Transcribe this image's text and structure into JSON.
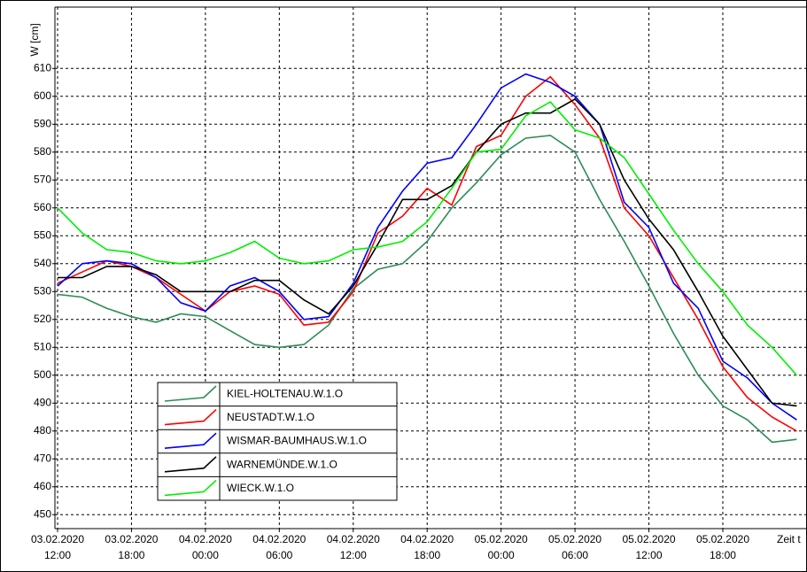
{
  "chart_data": {
    "type": "line",
    "y_label": "W [cm]",
    "x_label": "Zeit t",
    "x": [
      "03.02.2020 12:00",
      "03.02.2020 14:00",
      "03.02.2020 16:00",
      "03.02.2020 18:00",
      "03.02.2020 20:00",
      "03.02.2020 22:00",
      "04.02.2020 00:00",
      "04.02.2020 02:00",
      "04.02.2020 04:00",
      "04.02.2020 06:00",
      "04.02.2020 08:00",
      "04.02.2020 10:00",
      "04.02.2020 12:00",
      "04.02.2020 14:00",
      "04.02.2020 16:00",
      "04.02.2020 18:00",
      "04.02.2020 20:00",
      "04.02.2020 22:00",
      "05.02.2020 00:00",
      "05.02.2020 02:00",
      "05.02.2020 04:00",
      "05.02.2020 06:00",
      "05.02.2020 08:00",
      "05.02.2020 10:00",
      "05.02.2020 12:00",
      "05.02.2020 14:00",
      "05.02.2020 16:00",
      "05.02.2020 18:00",
      "05.02.2020 20:00",
      "05.02.2020 22:00",
      "06.02.2020 00:00"
    ],
    "series": [
      {
        "name": "KIEL-HOLTENAU.W.1.O",
        "color": "#2e8b57",
        "values": [
          529,
          528,
          524,
          521,
          519,
          522,
          521,
          516,
          511,
          510,
          511,
          518,
          531,
          538,
          540,
          548,
          560,
          569,
          579,
          585,
          586,
          580,
          563,
          548,
          532,
          515,
          500,
          489,
          484,
          476,
          477
        ]
      },
      {
        "name": "NEUSTADT.W.1.O",
        "color": "#ff0000",
        "values": [
          533,
          537,
          541,
          539,
          535,
          529,
          523,
          530,
          532,
          529,
          518,
          519,
          530,
          551,
          557,
          567,
          561,
          582,
          586,
          600,
          607,
          597,
          585,
          560,
          550,
          535,
          520,
          503,
          492,
          485,
          480
        ]
      },
      {
        "name": "WISMAR-BAUMHAUS.W.1.O",
        "color": "#0000ff",
        "values": [
          532,
          540,
          541,
          540,
          535,
          526,
          523,
          532,
          535,
          530,
          520,
          521,
          533,
          553,
          566,
          576,
          578,
          590,
          603,
          608,
          605,
          600,
          590,
          562,
          553,
          533,
          524,
          505,
          499,
          490,
          484
        ]
      },
      {
        "name": "WARNEMÜNDE.W.1.O",
        "color": "#000000",
        "values": [
          535,
          535,
          539,
          539,
          536,
          530,
          530,
          530,
          534,
          534,
          527,
          522,
          532,
          547,
          563,
          563,
          568,
          580,
          590,
          594,
          594,
          599,
          590,
          570,
          556,
          545,
          530,
          514,
          502,
          490,
          489
        ]
      },
      {
        "name": "WIECK.W.1.O",
        "color": "#00ee00",
        "values": [
          560,
          551,
          545,
          544,
          541,
          540,
          541,
          544,
          548,
          542,
          540,
          541,
          545,
          546,
          548,
          555,
          567,
          580,
          581,
          593,
          598,
          588,
          585,
          578,
          565,
          552,
          540,
          530,
          518,
          510,
          500
        ]
      }
    ],
    "xlim": [
      "03.02.2020 12:00",
      "06.02.2020 00:50"
    ],
    "xticks": [
      "03.02.2020 12:00",
      "03.02.2020 18:00",
      "04.02.2020 00:00",
      "04.02.2020 06:00",
      "04.02.2020 12:00",
      "04.02.2020 18:00",
      "05.02.2020 00:00",
      "05.02.2020 06:00",
      "05.02.2020 12:00",
      "05.02.2020 18:00"
    ],
    "ylim": [
      445,
      632
    ],
    "yticks": [
      450,
      460,
      470,
      480,
      490,
      500,
      510,
      520,
      530,
      540,
      550,
      560,
      570,
      580,
      590,
      600,
      610
    ],
    "grid": true
  }
}
